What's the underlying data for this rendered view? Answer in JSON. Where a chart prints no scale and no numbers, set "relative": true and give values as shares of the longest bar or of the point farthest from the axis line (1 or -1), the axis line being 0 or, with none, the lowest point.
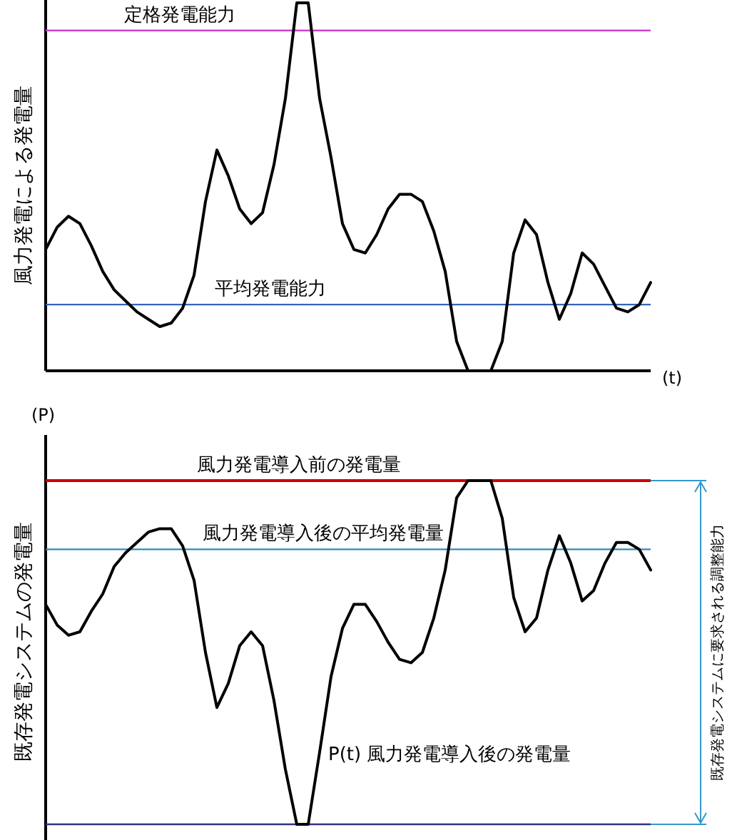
{
  "chart_data": [
    {
      "type": "line",
      "relative": true,
      "xlabel": "(t)",
      "ylabel": "風力発電による発電量",
      "categories": [
        null,
        null,
        null,
        null,
        null,
        null,
        null,
        null,
        null,
        null,
        null,
        null,
        null,
        null,
        null,
        null,
        null,
        null,
        null,
        null,
        null,
        null,
        null,
        null,
        null,
        null,
        null,
        null,
        null,
        null,
        null,
        null,
        null,
        null,
        null,
        null,
        null,
        null,
        null,
        null,
        null,
        null,
        null,
        null,
        null,
        null,
        null,
        null,
        null,
        null,
        null,
        null,
        null,
        null
      ],
      "series": [
        {
          "color": "#000000",
          "values": [
            0.33,
            0.39,
            0.42,
            0.4,
            0.34,
            0.27,
            0.22,
            0.19,
            0.16,
            0.14,
            0.12,
            0.13,
            0.17,
            0.26,
            0.46,
            0.6,
            0.53,
            0.44,
            0.4,
            0.43,
            0.56,
            0.74,
            1.0,
            1.0,
            0.74,
            0.58,
            0.4,
            0.33,
            0.32,
            0.37,
            0.44,
            0.48,
            0.48,
            0.46,
            0.38,
            0.27,
            0.08,
            0,
            0,
            0,
            0.08,
            0.32,
            0.41,
            0.37,
            0.24,
            0.14,
            0.21,
            0.32,
            0.29,
            0.23,
            0.17,
            0.16,
            0.18,
            0.24
          ]
        }
      ],
      "ref_lines": [
        {
          "axis": "y",
          "value": 0.925,
          "label": "定格発電能力",
          "color": "#cc44cc"
        },
        {
          "axis": "y",
          "value": 0.18,
          "label": "平均発電能力",
          "color": "#3366bb"
        }
      ]
    },
    {
      "type": "line",
      "relative": true,
      "ylabel": "既存発電システムの発電量",
      "categories": [
        null,
        null,
        null,
        null,
        null,
        null,
        null,
        null,
        null,
        null,
        null,
        null,
        null,
        null,
        null,
        null,
        null,
        null,
        null,
        null,
        null,
        null,
        null,
        null,
        null,
        null,
        null,
        null,
        null,
        null,
        null,
        null,
        null,
        null,
        null,
        null,
        null,
        null,
        null,
        null,
        null,
        null,
        null,
        null,
        null,
        null,
        null,
        null,
        null,
        null,
        null,
        null,
        null,
        null
      ],
      "series": [
        {
          "color": "#000000",
          "values": [
            0.64,
            0.58,
            0.55,
            0.56,
            0.62,
            0.67,
            0.75,
            0.79,
            0.82,
            0.85,
            0.86,
            0.86,
            0.81,
            0.71,
            0.5,
            0.34,
            0.41,
            0.52,
            0.56,
            0.52,
            0.36,
            0.16,
            0,
            0,
            0.21,
            0.43,
            0.57,
            0.64,
            0.64,
            0.59,
            0.53,
            0.48,
            0.47,
            0.5,
            0.6,
            0.74,
            0.95,
            1,
            1,
            1,
            0.89,
            0.66,
            0.56,
            0.6,
            0.74,
            0.84,
            0.76,
            0.65,
            0.68,
            0.76,
            0.82,
            0.82,
            0.8,
            0.74
          ]
        }
      ],
      "ref_lines": [
        {
          "axis": "y",
          "value": 1,
          "label": "風力発電導入前の発電量",
          "color": "#cc0000"
        },
        {
          "axis": "y",
          "value": 0.8,
          "label": "風力発電導入後の平均発電量",
          "color": "#3388bb"
        },
        {
          "axis": "y",
          "value": 0,
          "color": "#333388"
        }
      ],
      "annotations": [
        "(P)",
        "P(t) 風力発電導入後の発電量",
        "既存発電システムに要求される調整能力"
      ]
    }
  ]
}
